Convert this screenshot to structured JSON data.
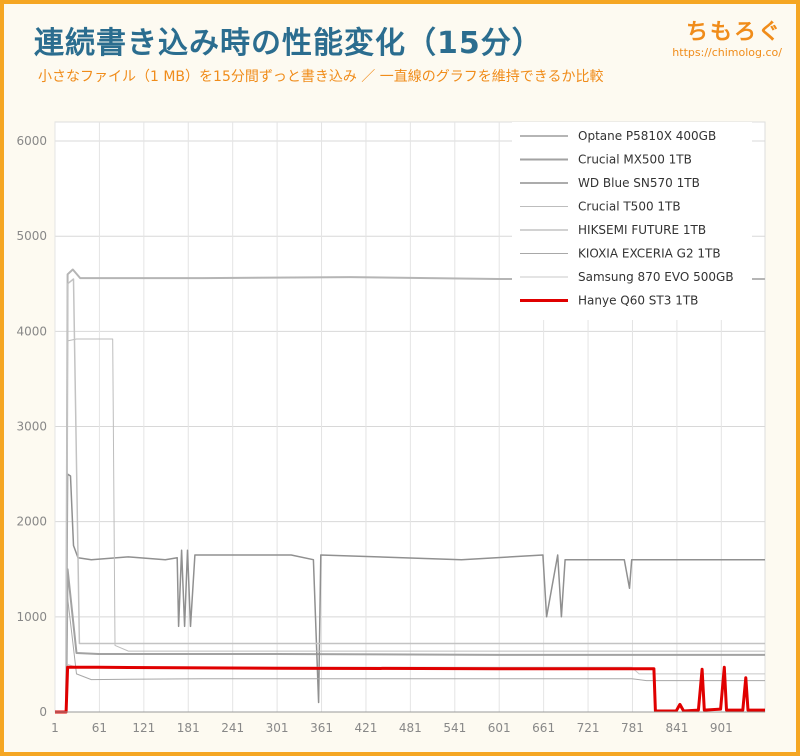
{
  "header": {
    "title": "連続書き込み時の性能変化（15分）",
    "subtitle": "小さなファイル（1 MB）を15分間ずっと書き込み ／ 一直線のグラフを維持できるか比較",
    "brand_name": "ちもろぐ",
    "brand_url": "https://chimolog.co/"
  },
  "chart_data": {
    "type": "line",
    "title": "連続書き込み時の性能変化（15分）",
    "xlabel": "",
    "ylabel": "",
    "xlim": [
      1,
      960
    ],
    "ylim": [
      0,
      6200
    ],
    "x_ticks": [
      "1",
      "61",
      "121",
      "181",
      "241",
      "301",
      "361",
      "421",
      "481",
      "541",
      "601",
      "661",
      "721",
      "781",
      "841",
      "901"
    ],
    "y_ticks": [
      "0",
      "1000",
      "2000",
      "3000",
      "4000",
      "5000",
      "6000"
    ],
    "grid": true,
    "legend_position": "top-right",
    "series": [
      {
        "name": "Optane P5810X 400GB",
        "color": "#b5b5b5",
        "width": 2,
        "points": [
          [
            1,
            0
          ],
          [
            16,
            0
          ],
          [
            18,
            4600
          ],
          [
            25,
            4650
          ],
          [
            35,
            4560
          ],
          [
            200,
            4560
          ],
          [
            400,
            4570
          ],
          [
            600,
            4550
          ],
          [
            700,
            4550
          ],
          [
            960,
            4550
          ]
        ]
      },
      {
        "name": "Crucial MX500 1TB",
        "color": "#a2a2a2",
        "width": 2,
        "points": [
          [
            1,
            0
          ],
          [
            16,
            0
          ],
          [
            18,
            1500
          ],
          [
            30,
            620
          ],
          [
            60,
            610
          ],
          [
            300,
            610
          ],
          [
            600,
            600
          ],
          [
            960,
            600
          ]
        ]
      },
      {
        "name": "WD Blue SN570 1TB",
        "color": "#909090",
        "width": 1.5,
        "points": [
          [
            1,
            0
          ],
          [
            16,
            0
          ],
          [
            18,
            2500
          ],
          [
            22,
            2480
          ],
          [
            26,
            1750
          ],
          [
            32,
            1620
          ],
          [
            50,
            1600
          ],
          [
            100,
            1630
          ],
          [
            150,
            1600
          ],
          [
            166,
            1620
          ],
          [
            168,
            900
          ],
          [
            172,
            1700
          ],
          [
            176,
            900
          ],
          [
            180,
            1700
          ],
          [
            184,
            900
          ],
          [
            190,
            1650
          ],
          [
            320,
            1650
          ],
          [
            350,
            1600
          ],
          [
            357,
            100
          ],
          [
            360,
            1650
          ],
          [
            550,
            1600
          ],
          [
            660,
            1650
          ],
          [
            665,
            1000
          ],
          [
            680,
            1650
          ],
          [
            685,
            1000
          ],
          [
            690,
            1600
          ],
          [
            750,
            1600
          ],
          [
            770,
            1600
          ],
          [
            777,
            1300
          ],
          [
            780,
            1600
          ],
          [
            960,
            1600
          ]
        ]
      },
      {
        "name": "Crucial T500 1TB",
        "color": "#bdbdbd",
        "width": 1,
        "points": [
          [
            1,
            0
          ],
          [
            16,
            0
          ],
          [
            18,
            3900
          ],
          [
            30,
            3920
          ],
          [
            79,
            3920
          ],
          [
            82,
            700
          ],
          [
            100,
            640
          ],
          [
            300,
            640
          ],
          [
            600,
            640
          ],
          [
            960,
            640
          ]
        ]
      },
      {
        "name": "HIKSEMI FUTURE 1TB",
        "color": "#c3c3c3",
        "width": 1.5,
        "points": [
          [
            1,
            0
          ],
          [
            16,
            0
          ],
          [
            18,
            4500
          ],
          [
            26,
            4550
          ],
          [
            34,
            720
          ],
          [
            200,
            720
          ],
          [
            400,
            720
          ],
          [
            700,
            720
          ],
          [
            960,
            720
          ]
        ]
      },
      {
        "name": "KIOXIA EXCERIA G2 1TB",
        "color": "#a8a8a8",
        "width": 1,
        "points": [
          [
            1,
            0
          ],
          [
            16,
            0
          ],
          [
            18,
            1200
          ],
          [
            30,
            400
          ],
          [
            50,
            340
          ],
          [
            200,
            350
          ],
          [
            500,
            350
          ],
          [
            780,
            350
          ],
          [
            800,
            330
          ],
          [
            960,
            330
          ]
        ]
      },
      {
        "name": "Samsung 870 EVO 500GB",
        "color": "#c8c8c8",
        "width": 1,
        "points": [
          [
            1,
            0
          ],
          [
            16,
            0
          ],
          [
            18,
            500
          ],
          [
            30,
            470
          ],
          [
            300,
            470
          ],
          [
            600,
            470
          ],
          [
            780,
            470
          ],
          [
            790,
            400
          ],
          [
            960,
            400
          ]
        ]
      },
      {
        "name": "Hanye Q60 ST3 1TB",
        "color": "#e00000",
        "width": 3,
        "points": [
          [
            1,
            0
          ],
          [
            16,
            0
          ],
          [
            18,
            470
          ],
          [
            60,
            470
          ],
          [
            300,
            460
          ],
          [
            600,
            455
          ],
          [
            800,
            455
          ],
          [
            810,
            455
          ],
          [
            812,
            10
          ],
          [
            840,
            10
          ],
          [
            845,
            80
          ],
          [
            850,
            10
          ],
          [
            870,
            20
          ],
          [
            875,
            450
          ],
          [
            878,
            20
          ],
          [
            900,
            30
          ],
          [
            905,
            470
          ],
          [
            908,
            20
          ],
          [
            930,
            20
          ],
          [
            934,
            360
          ],
          [
            937,
            20
          ],
          [
            960,
            20
          ]
        ]
      }
    ]
  }
}
